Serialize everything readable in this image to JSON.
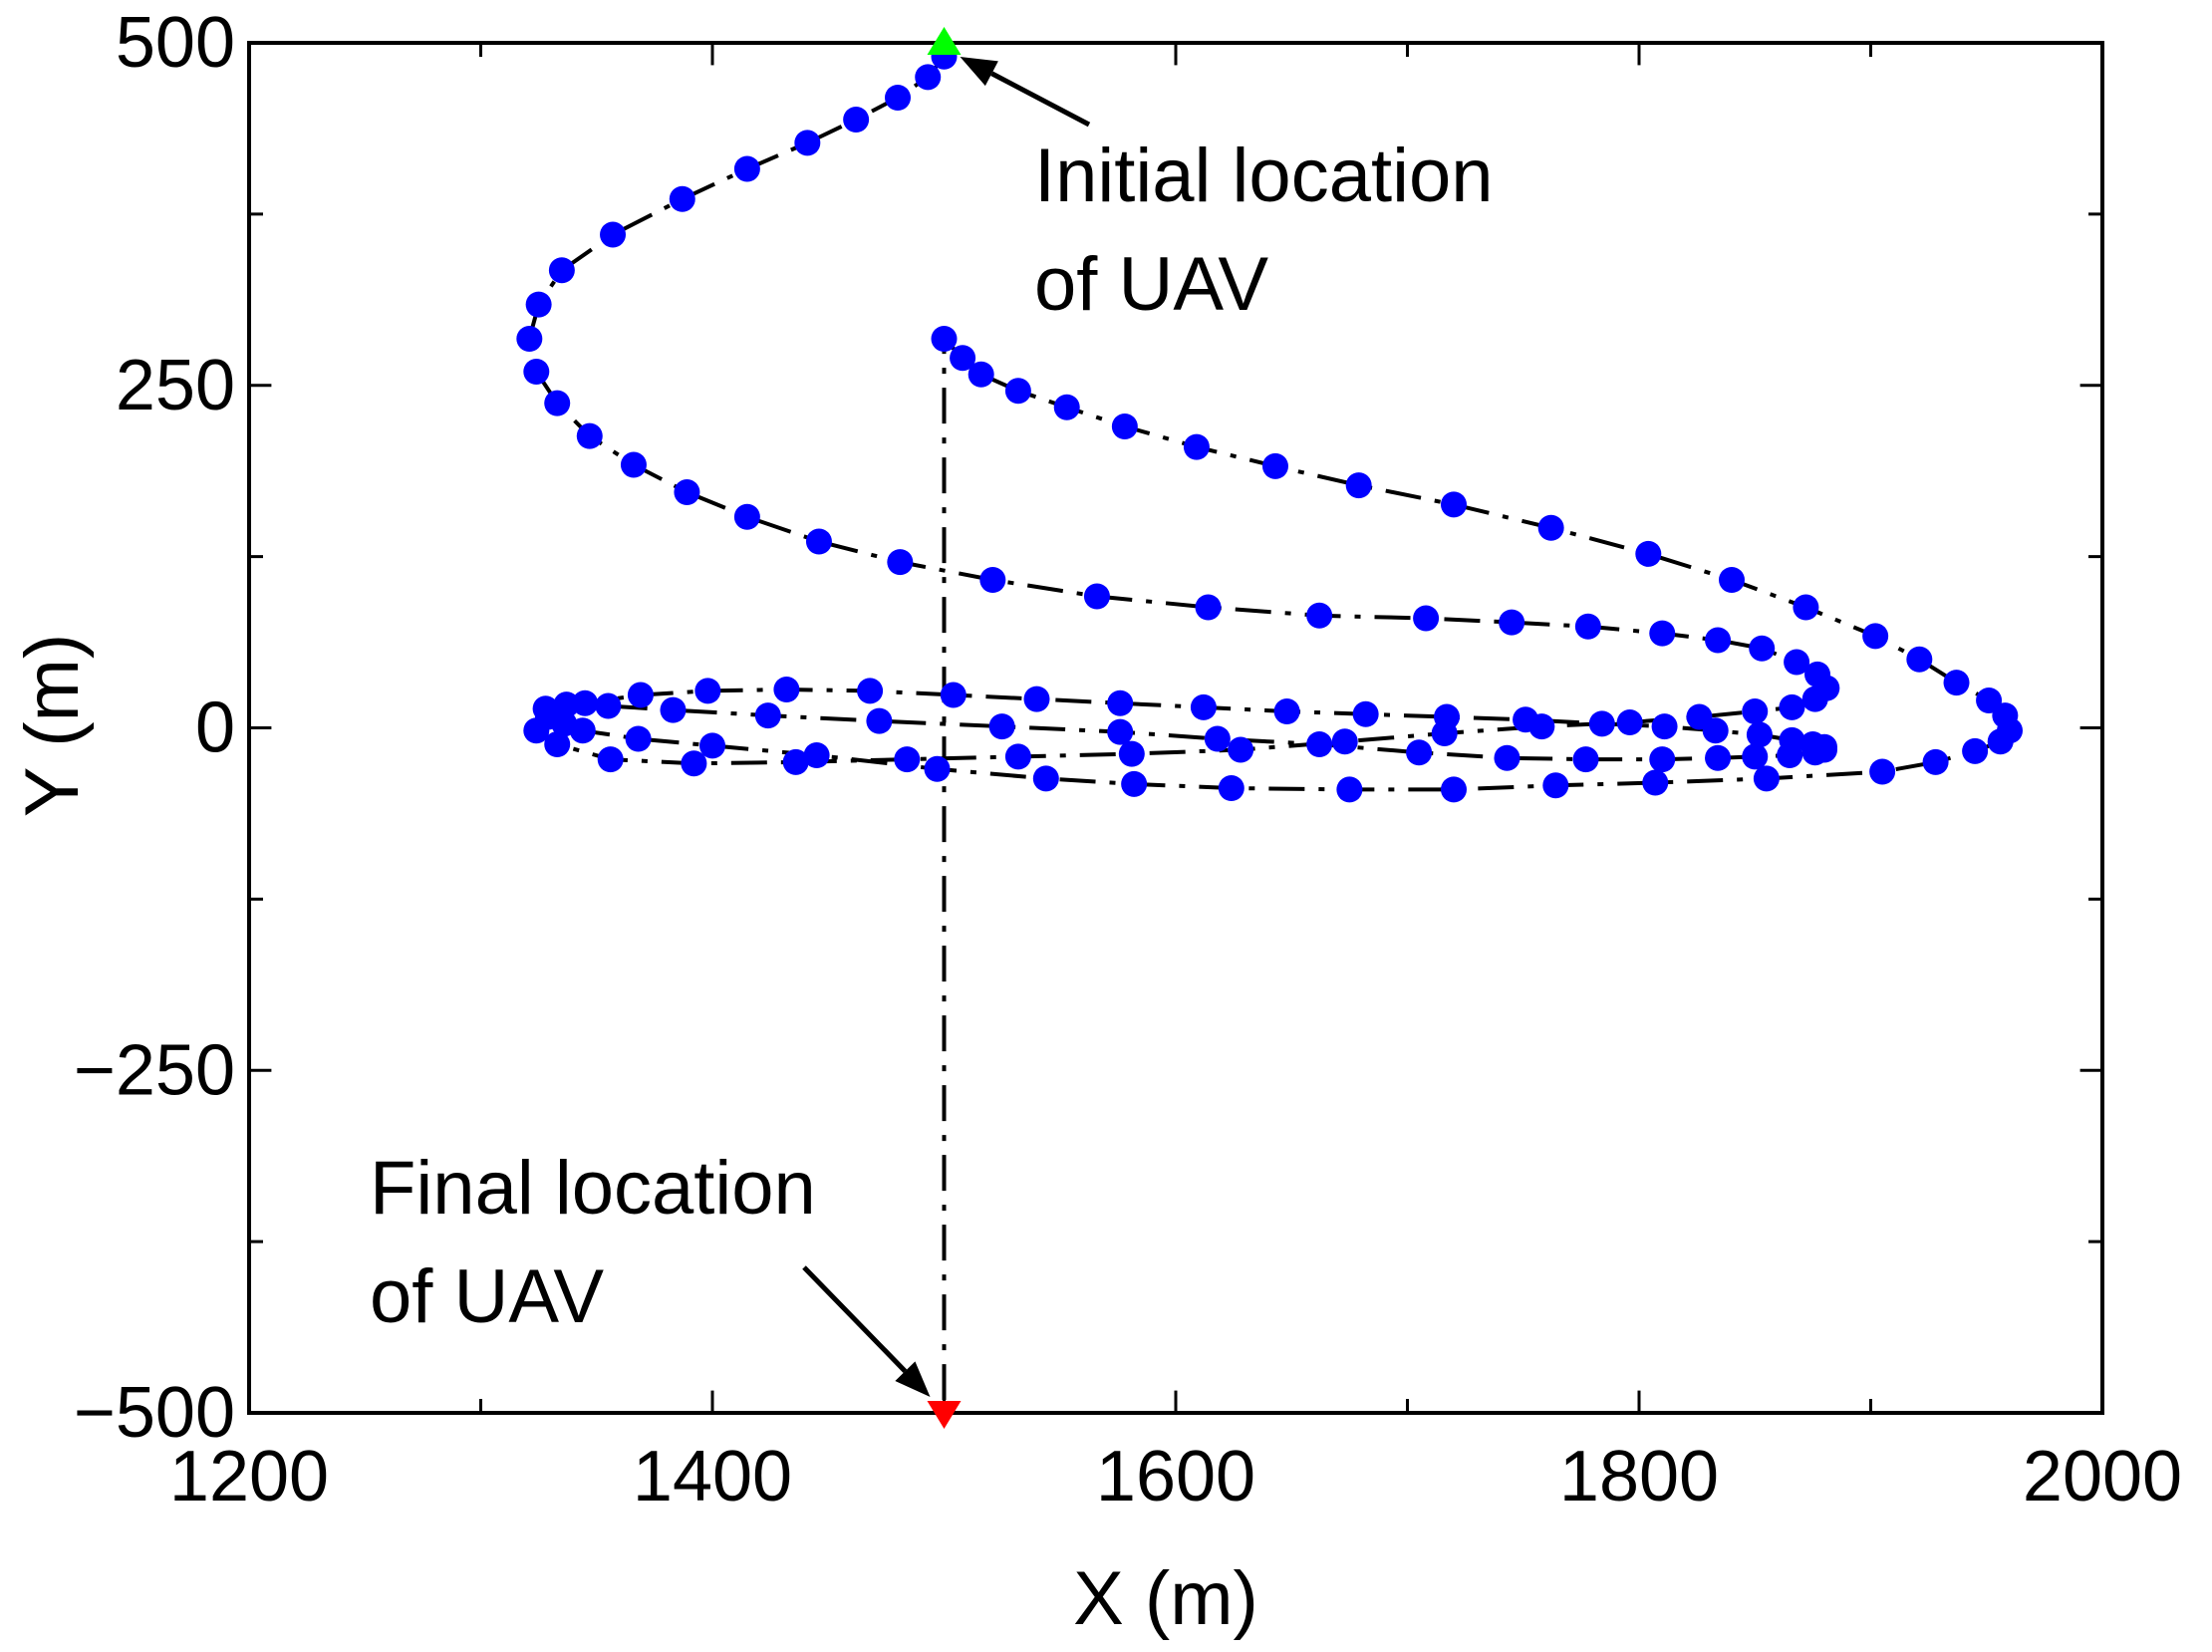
{
  "chart_data": {
    "type": "scatter",
    "title": "",
    "xlabel": "X (m)",
    "ylabel": "Y (m)",
    "xlim": [
      1200,
      2000
    ],
    "ylim": [
      -500,
      500
    ],
    "x_ticks": [
      1200,
      1400,
      1600,
      1800,
      2000
    ],
    "y_ticks": [
      500,
      250,
      0,
      -250,
      -500
    ],
    "y_tick_labels": [
      "500",
      "250",
      "0",
      "−250",
      "−500"
    ],
    "grid": false,
    "legend": "none",
    "line_style": "dash-dot",
    "colors": {
      "trajectory_line": "#000000",
      "waypoints": "#0000ff",
      "initial_marker": "#00ff00",
      "final_marker": "#ff0000"
    },
    "initial_location": {
      "x": 1500,
      "y": 500,
      "marker": "triangle-up",
      "label_line1": "Initial location",
      "label_line2": "of UAV"
    },
    "final_location": {
      "x": 1500,
      "y": -500,
      "marker": "triangle-down",
      "label_line1": "Final location",
      "label_line2": "of UAV"
    },
    "series": [
      {
        "x": [
          1500,
          1493,
          1480,
          1462,
          1441,
          1415,
          1387,
          1357,
          1335,
          1325,
          1321,
          1324,
          1333,
          1347,
          1366,
          1389,
          1415,
          1446,
          1481,
          1521,
          1566,
          1614,
          1662,
          1708,
          1745,
          1778,
          1810,
          1834,
          1853,
          1868,
          1877,
          1881,
          1876,
          1866,
          1850,
          1826,
          1796,
          1758,
          1716,
          1673,
          1628,
          1581,
          1532,
          1484,
          1436,
          1392,
          1356,
          1333,
          1324,
          1329,
          1345,
          1369,
          1398,
          1432,
          1468,
          1504,
          1540,
          1576,
          1612,
          1648,
          1682,
          1717,
          1751,
          1784,
          1811,
          1833,
          1852,
          1866,
          1875,
          1880,
          1880,
          1876,
          1865,
          1850,
          1834,
          1810,
          1777,
          1743,
          1705,
          1662,
          1618,
          1576,
          1525,
          1472,
          1424,
          1383,
          1355,
          1337,
          1328,
          1329,
          1336,
          1344,
          1368,
          1400,
          1445,
          1497,
          1544,
          1582,
          1624,
          1675,
          1720,
          1764,
          1807,
          1855,
          1905,
          1928,
          1945,
          1956,
          1960,
          1958,
          1951,
          1937,
          1921,
          1902,
          1872,
          1840,
          1804,
          1762,
          1720,
          1679,
          1643,
          1609,
          1578,
          1553,
          1532,
          1516,
          1508,
          1500
        ],
        "y": [
          490,
          475,
          460,
          444,
          427,
          408,
          386,
          360,
          334,
          309,
          284,
          260,
          237,
          213,
          192,
          172,
          154,
          136,
          121,
          108,
          96,
          88,
          82,
          80,
          77,
          74,
          69,
          64,
          58,
          48,
          39,
          29,
          21,
          15,
          12,
          8,
          4,
          1,
          -4,
          -10,
          -16,
          -19,
          -21,
          -23,
          -25,
          -26,
          -23,
          -12,
          -2,
          10,
          18,
          24,
          27,
          28,
          27,
          24,
          21,
          18,
          15,
          12,
          10,
          8,
          6,
          3,
          1,
          -2,
          -5,
          -9,
          -12,
          -14,
          -16,
          -18,
          -20,
          -21,
          -22,
          -23,
          -23,
          -22,
          -18,
          -12,
          -8,
          -3,
          1,
          5,
          9,
          13,
          16,
          17,
          14,
          8,
          3,
          -2,
          -8,
          -13,
          -20,
          -30,
          -37,
          -41,
          -44,
          -45,
          -45,
          -42,
          -40,
          -37,
          -32,
          -25,
          -17,
          -10,
          -2,
          9,
          20,
          33,
          50,
          67,
          88,
          108,
          127,
          146,
          163,
          177,
          191,
          205,
          220,
          234,
          246,
          258,
          270,
          284
        ]
      }
    ]
  }
}
